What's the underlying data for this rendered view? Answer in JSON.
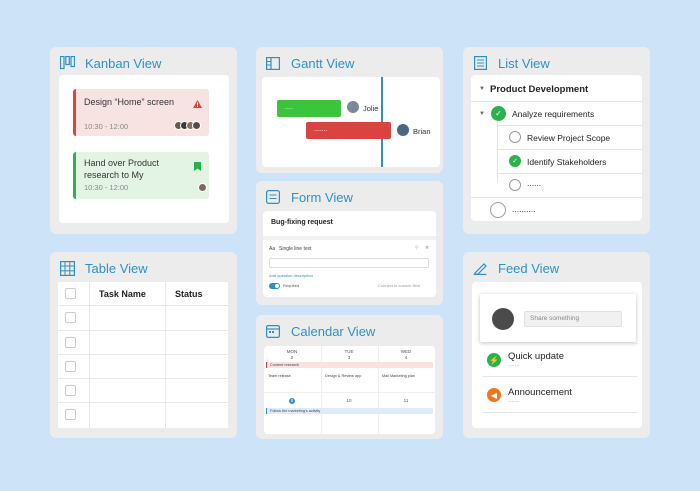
{
  "kanban": {
    "title": "Kanban View",
    "cards": [
      {
        "title": "Design “Home” screen",
        "time": "10:30 - 12:00",
        "accent": "#e0433e"
      },
      {
        "title": "Hand over Product research to My",
        "time": "10:30 - 12:00",
        "accent": "#2bb24c"
      }
    ]
  },
  "gantt": {
    "title": "Gantt View",
    "bars": [
      {
        "label": "....",
        "assignee": "Jolie",
        "color": "#3cc43a"
      },
      {
        "label": ".......",
        "assignee": "Brian",
        "color": "#d94340"
      }
    ]
  },
  "list": {
    "title": "List View",
    "group": "Product Development",
    "items": [
      {
        "label": "Analyze requirements",
        "done": true
      },
      {
        "label": "Review Project Scope",
        "done": false
      },
      {
        "label": "Identify Stakeholders",
        "done": true
      },
      {
        "label": "......",
        "done": false
      },
      {
        "label": "..........",
        "done": false
      }
    ]
  },
  "form": {
    "title": "Form View",
    "form_title": "Bug-fixing request",
    "field_type": "Aa",
    "field_label": "Single line text",
    "add_description": "Add question description",
    "required": "Required",
    "connect": "Connect to custom field"
  },
  "table": {
    "title": "Table View",
    "columns": [
      "Task Name",
      "Status"
    ]
  },
  "calendar": {
    "title": "Calendar View",
    "days": [
      "MON",
      "TUE",
      "WED"
    ],
    "week1": [
      "2",
      "3",
      "4"
    ],
    "week2": [
      "9",
      "10",
      "11"
    ],
    "events": [
      "Content research",
      "Team release",
      "Design & Review app",
      "Mail Marketing plan",
      "Follow the marketing's activity"
    ]
  },
  "feed": {
    "title": "Feed View",
    "placeholder": "Share something",
    "items": [
      {
        "title": "Quick update",
        "sub": ".......",
        "color": "#2bb24c",
        "icon": "lightning-icon"
      },
      {
        "title": "Announcement",
        "sub": ".......",
        "color": "#f0761a",
        "icon": "megaphone-icon"
      }
    ]
  }
}
